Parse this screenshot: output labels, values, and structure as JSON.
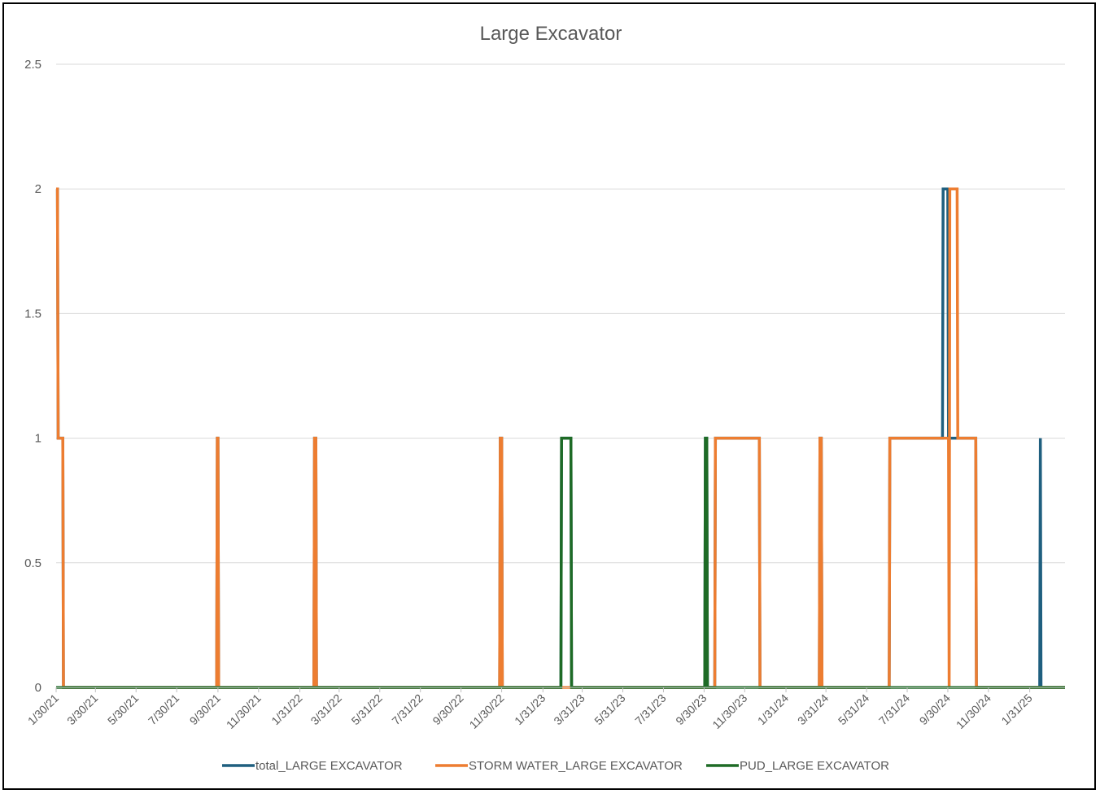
{
  "chart_data": {
    "type": "line",
    "title": "Large Excavator",
    "xlabel": "",
    "ylabel": "",
    "xlim": [
      "2021-01-30",
      "2025-03-25"
    ],
    "ylim": [
      0,
      2.5
    ],
    "y_ticks": [
      "0",
      "0.5",
      "1",
      "1.5",
      "2",
      "2.5"
    ],
    "x_ticks": [
      {
        "date": "2021-01-30",
        "label": "1/30/21"
      },
      {
        "date": "2021-03-30",
        "label": "3/30/21"
      },
      {
        "date": "2021-05-30",
        "label": "5/30/21"
      },
      {
        "date": "2021-07-30",
        "label": "7/30/21"
      },
      {
        "date": "2021-09-30",
        "label": "9/30/21"
      },
      {
        "date": "2021-11-30",
        "label": "11/30/21"
      },
      {
        "date": "2022-01-31",
        "label": "1/31/22"
      },
      {
        "date": "2022-03-31",
        "label": "3/31/22"
      },
      {
        "date": "2022-05-31",
        "label": "5/31/22"
      },
      {
        "date": "2022-07-31",
        "label": "7/31/22"
      },
      {
        "date": "2022-09-30",
        "label": "9/30/22"
      },
      {
        "date": "2022-11-30",
        "label": "11/30/22"
      },
      {
        "date": "2023-01-31",
        "label": "1/31/23"
      },
      {
        "date": "2023-03-31",
        "label": "3/31/23"
      },
      {
        "date": "2023-05-31",
        "label": "5/31/23"
      },
      {
        "date": "2023-07-31",
        "label": "7/31/23"
      },
      {
        "date": "2023-09-30",
        "label": "9/30/23"
      },
      {
        "date": "2023-11-30",
        "label": "11/30/23"
      },
      {
        "date": "2024-01-31",
        "label": "1/31/24"
      },
      {
        "date": "2024-03-31",
        "label": "3/31/24"
      },
      {
        "date": "2024-05-31",
        "label": "5/31/24"
      },
      {
        "date": "2024-07-31",
        "label": "7/31/24"
      },
      {
        "date": "2024-09-30",
        "label": "9/30/24"
      },
      {
        "date": "2024-11-30",
        "label": "11/30/24"
      },
      {
        "date": "2025-01-31",
        "label": "1/31/25"
      }
    ],
    "grid": "horizontal",
    "legend": "bottom",
    "series": [
      {
        "name": "total_LARGE EXCAVATOR",
        "color": "#1F5F7F",
        "points": [
          [
            "2021-01-30",
            2
          ],
          [
            "2021-02-01",
            2
          ],
          [
            "2021-02-02",
            1
          ],
          [
            "2021-02-09",
            1
          ],
          [
            "2021-02-10",
            0
          ],
          [
            "2021-09-28",
            0
          ],
          [
            "2021-09-29",
            1
          ],
          [
            "2021-09-30",
            1
          ],
          [
            "2021-10-01",
            0
          ],
          [
            "2022-02-21",
            0
          ],
          [
            "2022-02-22",
            1
          ],
          [
            "2022-02-24",
            1
          ],
          [
            "2022-02-25",
            0
          ],
          [
            "2022-11-27",
            0
          ],
          [
            "2022-11-28",
            1
          ],
          [
            "2022-11-30",
            1
          ],
          [
            "2022-12-01",
            0
          ],
          [
            "2023-02-27",
            0
          ],
          [
            "2023-02-28",
            1
          ],
          [
            "2023-03-14",
            1
          ],
          [
            "2023-03-15",
            0
          ],
          [
            "2023-10-01",
            0
          ],
          [
            "2023-10-02",
            1
          ],
          [
            "2023-10-04",
            1
          ],
          [
            "2023-10-05",
            0
          ],
          [
            "2023-10-16",
            0
          ],
          [
            "2023-10-17",
            1
          ],
          [
            "2023-12-22",
            1
          ],
          [
            "2023-12-23",
            0
          ],
          [
            "2024-03-21",
            0
          ],
          [
            "2024-03-22",
            1
          ],
          [
            "2024-03-24",
            1
          ],
          [
            "2024-03-25",
            0
          ],
          [
            "2024-07-04",
            0
          ],
          [
            "2024-07-05",
            1
          ],
          [
            "2024-09-22",
            1
          ],
          [
            "2024-09-23",
            2
          ],
          [
            "2024-09-30",
            2
          ],
          [
            "2024-10-01",
            1
          ],
          [
            "2024-11-11",
            1
          ],
          [
            "2024-11-12",
            0
          ],
          [
            "2025-02-15",
            0
          ],
          [
            "2025-02-16",
            1
          ],
          [
            "2025-02-17",
            0
          ],
          [
            "2025-03-25",
            0
          ]
        ]
      },
      {
        "name": "STORM WATER_LARGE EXCAVATOR",
        "color": "#ED7D31",
        "points": [
          [
            "2021-01-30",
            2
          ],
          [
            "2021-02-01",
            2
          ],
          [
            "2021-02-02",
            1
          ],
          [
            "2021-02-09",
            1
          ],
          [
            "2021-02-10",
            0
          ],
          [
            "2021-09-28",
            0
          ],
          [
            "2021-09-29",
            1
          ],
          [
            "2021-09-30",
            1
          ],
          [
            "2021-10-01",
            0
          ],
          [
            "2022-02-21",
            0
          ],
          [
            "2022-02-22",
            1
          ],
          [
            "2022-02-24",
            1
          ],
          [
            "2022-02-25",
            0
          ],
          [
            "2022-11-27",
            0
          ],
          [
            "2022-11-28",
            1
          ],
          [
            "2022-11-30",
            1
          ],
          [
            "2022-12-01",
            0
          ],
          [
            "2023-10-16",
            0
          ],
          [
            "2023-10-17",
            1
          ],
          [
            "2023-12-22",
            1
          ],
          [
            "2023-12-23",
            0
          ],
          [
            "2024-03-21",
            0
          ],
          [
            "2024-03-22",
            1
          ],
          [
            "2024-03-24",
            1
          ],
          [
            "2024-03-25",
            0
          ],
          [
            "2024-07-04",
            0
          ],
          [
            "2024-07-05",
            1
          ],
          [
            "2024-10-01",
            1
          ],
          [
            "2024-10-02",
            0
          ],
          [
            "2024-10-03",
            2
          ],
          [
            "2024-10-14",
            2
          ],
          [
            "2024-10-15",
            1
          ],
          [
            "2024-11-11",
            1
          ],
          [
            "2024-11-12",
            0
          ],
          [
            "2025-03-25",
            0
          ]
        ]
      },
      {
        "name": "PUD_LARGE EXCAVATOR",
        "color": "#1E6B26",
        "points": [
          [
            "2021-01-30",
            0
          ],
          [
            "2023-02-27",
            0
          ],
          [
            "2023-02-28",
            1
          ],
          [
            "2023-03-14",
            1
          ],
          [
            "2023-03-15",
            0
          ],
          [
            "2023-10-01",
            0
          ],
          [
            "2023-10-02",
            1
          ],
          [
            "2023-10-04",
            1
          ],
          [
            "2023-10-05",
            0
          ],
          [
            "2025-03-25",
            0
          ]
        ]
      }
    ]
  }
}
